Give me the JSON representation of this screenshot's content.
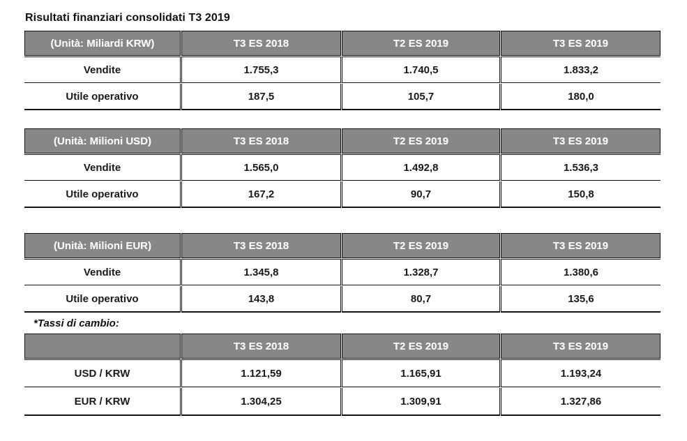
{
  "page": {
    "title": "Risultati finanziari consolidati T3 2019",
    "footnote": "*Tassi di cambio:"
  },
  "colors": {
    "header_bg": "#878787",
    "header_text": "#f7f7f7",
    "border": "#111111",
    "body_text": "#1a1a1a",
    "background": "#ffffff"
  },
  "tables": [
    {
      "unit": "(Unità: Miliardi KRW)",
      "headers": [
        "T3 ES 2018",
        "T2 ES 2019",
        "T3 ES 2019"
      ],
      "rows": [
        {
          "label": "Vendite",
          "values": [
            "1.755,3",
            "1.740,5",
            "1.833,2"
          ]
        },
        {
          "label": "Utile operativo",
          "values": [
            "187,5",
            "105,7",
            "180,0"
          ]
        }
      ]
    },
    {
      "unit": "(Unità: Milioni USD)",
      "headers": [
        "T3 ES 2018",
        "T2 ES 2019",
        "T3 ES 2019"
      ],
      "rows": [
        {
          "label": "Vendite",
          "values": [
            "1.565,0",
            "1.492,8",
            "1.536,3"
          ]
        },
        {
          "label": "Utile operativo",
          "values": [
            "167,2",
            "90,7",
            "150,8"
          ]
        }
      ]
    },
    {
      "unit": "(Unità: Milioni EUR)",
      "headers": [
        "T3 ES 2018",
        "T2 ES 2019",
        "T3 ES 2019"
      ],
      "rows": [
        {
          "label": "Vendite",
          "values": [
            "1.345,8",
            "1.328,7",
            "1.380,6"
          ]
        },
        {
          "label": "Utile operativo",
          "values": [
            "143,8",
            "80,7",
            "135,6"
          ]
        }
      ]
    },
    {
      "unit": "",
      "headers": [
        "T3 ES 2018",
        "T2 ES 2019",
        "T3 ES 2019"
      ],
      "rows": [
        {
          "label": "USD / KRW",
          "values": [
            "1.121,59",
            "1.165,91",
            "1.193,24"
          ]
        },
        {
          "label": "EUR / KRW",
          "values": [
            "1.304,25",
            "1.309,91",
            "1.327,86"
          ]
        }
      ]
    }
  ]
}
